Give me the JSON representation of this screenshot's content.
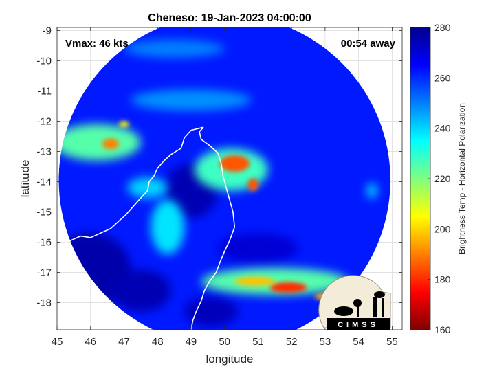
{
  "chart_data": {
    "type": "heatmap",
    "title": "Cheneso: 19-Jan-2023 04:00:00",
    "xlabel": "longitude",
    "ylabel": "latitude",
    "xlim": [
      45,
      55.3
    ],
    "ylim": [
      -18.9,
      -8.9
    ],
    "xticks": [
      45,
      46,
      47,
      48,
      49,
      50,
      51,
      52,
      53,
      54,
      55
    ],
    "yticks": [
      -9,
      -10,
      -11,
      -12,
      -13,
      -14,
      -15,
      -16,
      -17,
      -18
    ],
    "grid": true,
    "annotations": {
      "left": "Vmax: 46 kts",
      "right": "00:54 away"
    },
    "colorbar": {
      "label": "Brightness Temp - Horizontal Polarization",
      "range": [
        160,
        280
      ],
      "ticks": [
        160,
        180,
        200,
        220,
        240,
        260,
        280
      ],
      "colormap": "jet",
      "position": "right"
    },
    "swath": {
      "center_lon": 50.0,
      "center_lat": -13.95,
      "radius_deg": 4.95
    },
    "background_tb": 262,
    "cold_features": [
      {
        "lon": 50.3,
        "lat": -13.4,
        "rx": 0.45,
        "ry": 0.28,
        "tb": 185
      },
      {
        "lon": 50.85,
        "lat": -14.1,
        "rx": 0.16,
        "ry": 0.22,
        "tb": 185
      },
      {
        "lon": 46.6,
        "lat": -12.75,
        "rx": 0.25,
        "ry": 0.18,
        "tb": 190
      },
      {
        "lon": 47.0,
        "lat": -12.1,
        "rx": 0.15,
        "ry": 0.1,
        "tb": 205
      },
      {
        "lon": 51.9,
        "lat": -17.5,
        "rx": 0.55,
        "ry": 0.17,
        "tb": 180
      },
      {
        "lon": 50.9,
        "lat": -17.3,
        "rx": 0.6,
        "ry": 0.15,
        "tb": 198
      },
      {
        "lon": 53.0,
        "lat": -17.8,
        "rx": 0.3,
        "ry": 0.12,
        "tb": 195
      },
      {
        "lon": 46.2,
        "lat": -12.7,
        "rx": 1.3,
        "ry": 0.6,
        "tb": 225
      },
      {
        "lon": 50.2,
        "lat": -13.6,
        "rx": 1.1,
        "ry": 0.7,
        "tb": 228
      },
      {
        "lon": 51.5,
        "lat": -17.3,
        "rx": 2.2,
        "ry": 0.45,
        "tb": 225
      },
      {
        "lon": 48.3,
        "lat": -15.5,
        "rx": 0.5,
        "ry": 0.9,
        "tb": 238
      },
      {
        "lon": 47.7,
        "lat": -14.2,
        "rx": 0.6,
        "ry": 0.35,
        "tb": 240
      },
      {
        "lon": 54.4,
        "lat": -14.3,
        "rx": 0.15,
        "ry": 0.25,
        "tb": 238
      },
      {
        "lon": 49.0,
        "lat": -11.3,
        "rx": 1.8,
        "ry": 0.35,
        "tb": 248
      },
      {
        "lon": 48.5,
        "lat": -9.6,
        "rx": 1.5,
        "ry": 0.3,
        "tb": 250
      }
    ],
    "warm_features": [
      {
        "lon": 46.0,
        "lat": -16.9,
        "rx": 1.2,
        "ry": 1.2,
        "tb": 275
      },
      {
        "lon": 49.0,
        "lat": -14.3,
        "rx": 0.8,
        "ry": 0.9,
        "tb": 274
      },
      {
        "lon": 47.5,
        "lat": -17.6,
        "rx": 0.9,
        "ry": 0.7,
        "tb": 274
      },
      {
        "lon": 51.0,
        "lat": -16.2,
        "rx": 1.2,
        "ry": 0.5,
        "tb": 270
      },
      {
        "lon": 49.6,
        "lat": -18.3,
        "rx": 0.8,
        "ry": 0.5,
        "tb": 273
      }
    ],
    "coastline": [
      [
        49.37,
        -12.2
      ],
      [
        49.25,
        -12.35
      ],
      [
        49.3,
        -12.6
      ],
      [
        49.55,
        -12.8
      ],
      [
        49.8,
        -13.05
      ],
      [
        49.9,
        -13.4
      ],
      [
        49.95,
        -13.8
      ],
      [
        50.05,
        -14.2
      ],
      [
        50.15,
        -14.6
      ],
      [
        50.25,
        -15.0
      ],
      [
        50.3,
        -15.5
      ],
      [
        50.15,
        -15.95
      ],
      [
        50.0,
        -16.3
      ],
      [
        49.85,
        -16.7
      ],
      [
        49.75,
        -17.0
      ],
      [
        49.55,
        -17.3
      ],
      [
        49.4,
        -17.6
      ],
      [
        49.3,
        -17.95
      ],
      [
        49.15,
        -18.3
      ],
      [
        49.05,
        -18.6
      ],
      [
        49.0,
        -18.9
      ]
    ],
    "coastline_west": [
      [
        49.37,
        -12.2
      ],
      [
        49.0,
        -12.3
      ],
      [
        48.8,
        -12.55
      ],
      [
        48.7,
        -12.9
      ],
      [
        48.4,
        -13.1
      ],
      [
        48.2,
        -13.3
      ],
      [
        48.0,
        -13.55
      ],
      [
        47.9,
        -13.8
      ],
      [
        47.75,
        -14.0
      ],
      [
        47.7,
        -14.3
      ],
      [
        47.45,
        -14.6
      ],
      [
        47.25,
        -14.85
      ],
      [
        47.05,
        -15.1
      ],
      [
        46.8,
        -15.35
      ],
      [
        46.6,
        -15.55
      ],
      [
        46.3,
        -15.7
      ],
      [
        46.0,
        -15.85
      ],
      [
        45.7,
        -15.8
      ],
      [
        45.4,
        -15.95
      ],
      [
        45.0,
        -16.1
      ]
    ],
    "cimss_logo_text": "CIMSS"
  }
}
